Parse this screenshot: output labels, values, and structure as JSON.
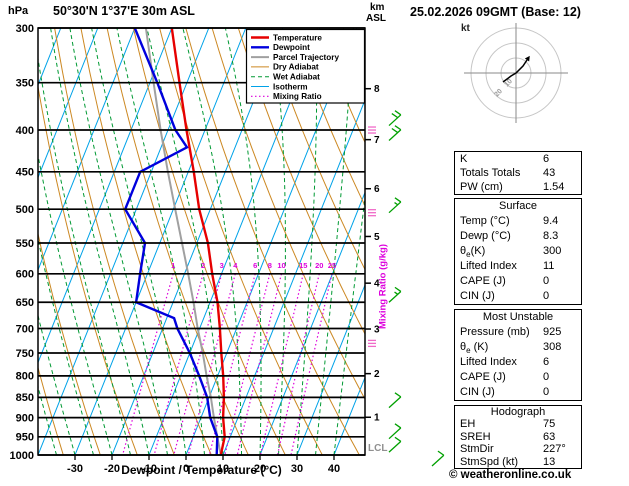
{
  "header": {
    "pressure_unit": "hPa",
    "title": "50°30'N 1°37'E 30m ASL",
    "km_label": "km",
    "asl_label": "ASL",
    "date_line": "25.02.2026 09GMT (Base: 12)"
  },
  "axis_labels": {
    "x_axis": "Dewpoint / Temperature (°C)",
    "mixing_ratio": "Mixing Ratio (g/kg)",
    "lcl": "LCL"
  },
  "footer": {
    "copyright": "© weatheronline.co.uk"
  },
  "legend": [
    {
      "label": "Temperature",
      "color": "#e60000",
      "width": 2.4,
      "dash": ""
    },
    {
      "label": "Dewpoint",
      "color": "#0000dd",
      "width": 2.4,
      "dash": ""
    },
    {
      "label": "Parcel Trajectory",
      "color": "#a0a0a0",
      "width": 2.0,
      "dash": ""
    },
    {
      "label": "Dry Adiabat",
      "color": "#cc8822",
      "width": 1.0,
      "dash": ""
    },
    {
      "label": "Wet Adiabat",
      "color": "#009933",
      "width": 1.0,
      "dash": "4,3"
    },
    {
      "label": "Isotherm",
      "color": "#00a2e8",
      "width": 1.0,
      "dash": ""
    },
    {
      "label": "Mixing Ratio",
      "color": "#dd00dd",
      "width": 1.2,
      "dash": "1.5,2.5"
    }
  ],
  "chart_data": {
    "type": "skewt-log-p",
    "pressure_axis_hpa": [
      300,
      350,
      400,
      450,
      500,
      550,
      600,
      650,
      700,
      750,
      800,
      850,
      900,
      950,
      1000
    ],
    "temp_ticks_c": [
      -30,
      -20,
      -10,
      0,
      10,
      20,
      30,
      40
    ],
    "km_ticks": [
      1,
      2,
      3,
      4,
      5,
      6,
      7,
      8
    ],
    "mixing_ratio_lines_gkg": [
      1,
      2,
      3,
      4,
      6,
      8,
      10,
      15,
      20,
      25
    ],
    "colors": {
      "temperature": "#e60000",
      "dewpoint": "#0000dd",
      "parcel": "#a0a0a0",
      "dry_adiabat": "#cc8822",
      "wet_adiabat": "#009933",
      "isotherm": "#00a2e8",
      "mixing_ratio": "#dd00dd",
      "wind_barb": "#00a000",
      "grid": "#000000",
      "marker_pink": "#f06ac8"
    },
    "series": {
      "temperature_p_c": [
        [
          1000,
          9.4
        ],
        [
          950,
          8.5
        ],
        [
          900,
          6
        ],
        [
          850,
          4
        ],
        [
          800,
          1.5
        ],
        [
          750,
          -1.5
        ],
        [
          700,
          -4.5
        ],
        [
          650,
          -8
        ],
        [
          600,
          -12.5
        ],
        [
          550,
          -17
        ],
        [
          500,
          -23
        ],
        [
          450,
          -28.5
        ],
        [
          400,
          -35
        ],
        [
          350,
          -42
        ],
        [
          300,
          -50
        ]
      ],
      "dewpoint_p_c": [
        [
          1000,
          8.3
        ],
        [
          950,
          6.5
        ],
        [
          900,
          2.5
        ],
        [
          850,
          -0.5
        ],
        [
          800,
          -5
        ],
        [
          750,
          -10
        ],
        [
          700,
          -16
        ],
        [
          680,
          -18
        ],
        [
          650,
          -30
        ],
        [
          600,
          -32
        ],
        [
          550,
          -34
        ],
        [
          500,
          -43
        ],
        [
          450,
          -43
        ],
        [
          420,
          -33
        ],
        [
          400,
          -38
        ],
        [
          350,
          -48
        ],
        [
          300,
          -60
        ]
      ],
      "parcel_p_c": [
        [
          1000,
          9.4
        ],
        [
          950,
          6.5
        ],
        [
          900,
          3.5
        ],
        [
          850,
          0.5
        ],
        [
          800,
          -3
        ],
        [
          750,
          -6.5
        ],
        [
          700,
          -10.5
        ],
        [
          650,
          -14.5
        ],
        [
          600,
          -19
        ],
        [
          550,
          -24
        ],
        [
          500,
          -29.5
        ],
        [
          450,
          -35.5
        ],
        [
          400,
          -42
        ],
        [
          350,
          -49
        ],
        [
          300,
          -57
        ]
      ]
    },
    "wind_barbs": [
      {
        "p": 395,
        "kt": 20
      },
      {
        "p": 412,
        "kt": 20
      },
      {
        "p": 505,
        "kt": 15
      },
      {
        "p": 650,
        "kt": 15
      },
      {
        "p": 875,
        "kt": 10
      },
      {
        "p": 955,
        "kt": 10
      },
      {
        "p": 992,
        "kt": 12
      }
    ],
    "surface_barb_kt": 12,
    "level_markers_p": [
      400,
      505,
      730
    ]
  },
  "hodograph": {
    "unit_label": "kt",
    "ring_labels": [
      "10",
      "20"
    ],
    "trace_rel": [
      [
        -13,
        9
      ],
      [
        -5,
        3
      ],
      [
        0,
        0
      ],
      [
        7,
        -7
      ],
      [
        11,
        -13
      ]
    ]
  },
  "panel": {
    "boxes": [
      {
        "header": null,
        "rows": [
          [
            "K",
            "6"
          ],
          [
            "Totals Totals",
            "43"
          ],
          [
            "PW (cm)",
            "1.54"
          ]
        ]
      },
      {
        "header": "Surface",
        "rows": [
          [
            "Temp (°C)",
            "9.4"
          ],
          [
            "Dewp (°C)",
            "8.3"
          ],
          [
            "θe(K)",
            "300"
          ],
          [
            "Lifted Index",
            "11"
          ],
          [
            "CAPE (J)",
            "0"
          ],
          [
            "CIN (J)",
            "0"
          ]
        ]
      },
      {
        "header": "Most Unstable",
        "rows": [
          [
            "Pressure (mb)",
            "925"
          ],
          [
            "θe (K)",
            "308"
          ],
          [
            "Lifted Index",
            "6"
          ],
          [
            "CAPE (J)",
            "0"
          ],
          [
            "CIN (J)",
            "0"
          ]
        ]
      },
      {
        "header": "Hodograph",
        "rows": [
          [
            "EH",
            "75"
          ],
          [
            "SREH",
            "63"
          ],
          [
            "StmDir",
            "227°"
          ],
          [
            "StmSpd (kt)",
            "13"
          ]
        ]
      }
    ]
  }
}
